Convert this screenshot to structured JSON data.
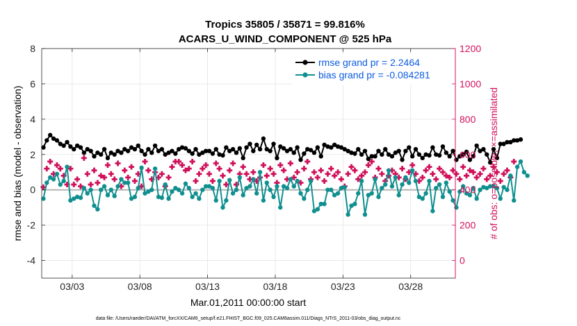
{
  "chart_data": {
    "type": "line",
    "title_line1": "Tropics 35805 / 35871 = 99.816%",
    "title_line2": "ACARS_U_WIND_COMPONENT @ 525 hPa",
    "xlabel": "Mar.01,2011 00:00:00 start",
    "ylabel_left": "rmse and bias (model - observation)",
    "ylabel_right": "# of obs: o=possible; ×=assimilated",
    "footnote": "data file: /Users/raeder/DAI/ATM_forcXX/CAM6_setup/f.e21.FHIST_BGC.f09_025.CAM6assim.011/Diags_NTrS_2011-03/obs_diag_output.nc",
    "x_range": [
      0.75,
      31.3
    ],
    "x_ticks": [
      {
        "value": 3,
        "label": "03/03"
      },
      {
        "value": 8,
        "label": "03/08"
      },
      {
        "value": 13,
        "label": "03/13"
      },
      {
        "value": 18,
        "label": "03/18"
      },
      {
        "value": 23,
        "label": "03/23"
      },
      {
        "value": 28,
        "label": "03/28"
      }
    ],
    "ylim_left": [
      -5,
      8
    ],
    "yticks_left": [
      "8",
      "6",
      "4",
      "2",
      "0",
      "-2",
      "-4"
    ],
    "ylim_right": [
      -100,
      1200
    ],
    "yticks_right": [
      "1200",
      "1000",
      "800",
      "600",
      "400",
      "200",
      "0"
    ],
    "zero_line": 0,
    "grid": true,
    "legend_position": "top-right",
    "colors": {
      "rmse": "#000000",
      "bias": "#108f8f",
      "obs": "#d0105a",
      "legend_text": "#0b5be0",
      "right_axis": "#d0105a",
      "zero_line": "#b5b5b5",
      "grid": "#e4e4e4"
    },
    "x_start": 0.875,
    "x_step": 0.25,
    "series": [
      {
        "name": "rmse",
        "legend_label": "rmse grand pr = 2.2464",
        "values": [
          2.4,
          2.8,
          3.1,
          2.9,
          2.8,
          2.6,
          2.5,
          2.7,
          2.45,
          2.3,
          2.5,
          2.4,
          2.1,
          2.3,
          2.2,
          1.9,
          2.1,
          2.0,
          2.3,
          1.8,
          2.1,
          2.0,
          2.2,
          2.1,
          2.3,
          2.2,
          2.4,
          2.3,
          2.5,
          2.2,
          2.0,
          2.3,
          2.1,
          2.5,
          2.2,
          2.3,
          2.0,
          2.1,
          2.2,
          2.05,
          2.3,
          2.4,
          2.35,
          2.2,
          2.05,
          2.3,
          2.0,
          2.1,
          2.2,
          2.2,
          2.05,
          2.3,
          2.0,
          1.95,
          2.4,
          2.2,
          2.3,
          2.1,
          2.35,
          1.8,
          2.4,
          2.6,
          2.2,
          2.55,
          2.3,
          2.9,
          2.3,
          2.2,
          2.6,
          1.8,
          2.45,
          2.35,
          2.2,
          2.3,
          2.1,
          2.4,
          1.7,
          2.05,
          2.3,
          2.25,
          2.1,
          2.4,
          1.9,
          2.55,
          2.45,
          2.4,
          2.55,
          2.45,
          2.4,
          2.3,
          2.2,
          2.1,
          2.05,
          2.3,
          2.0,
          2.2,
          1.75,
          1.9,
          1.9,
          2.2,
          2.0,
          2.3,
          2.0,
          1.9,
          2.1,
          2.2,
          1.7,
          2.2,
          2.4,
          1.9,
          2.3,
          2.0,
          1.8,
          2.0,
          1.95,
          2.4,
          2.0,
          1.95,
          2.45,
          2.1,
          1.9,
          2.2,
          1.7,
          1.9,
          2.0,
          2.15,
          1.7,
          1.9,
          2.5,
          2.2,
          2.3,
          2.0,
          1.55,
          2.3,
          1.8,
          2.6,
          2.6,
          2.7,
          2.7,
          2.8,
          2.8,
          2.85
        ]
      },
      {
        "name": "bias",
        "legend_label": "bias grand pr = -0.084281",
        "values": [
          -0.5,
          0.4,
          0.7,
          0.6,
          0.9,
          0.3,
          0.5,
          1.3,
          -0.6,
          -0.5,
          -0.4,
          -0.45,
          0.1,
          -0.2,
          0.0,
          -0.9,
          -1.1,
          0.0,
          0.2,
          -0.3,
          0.0,
          -0.35,
          0.2,
          0.6,
          0.4,
          0.4,
          -0.5,
          -0.4,
          0.1,
          1.25,
          -0.2,
          -0.1,
          0.0,
          1.2,
          -0.4,
          -0.45,
          0.3,
          -0.5,
          -0.1,
          0.1,
          0.0,
          -0.2,
          0.35,
          0.1,
          -0.4,
          -0.2,
          -0.5,
          0.0,
          0.2,
          0.2,
          0.1,
          -0.6,
          0.5,
          -1.0,
          -0.6,
          0.55,
          -0.2,
          0.0,
          0.7,
          -0.3,
          0.1,
          0.2,
          0.6,
          -0.2,
          1.0,
          -0.6,
          0.4,
          0.0,
          -0.4,
          0.2,
          -1.0,
          0.2,
          0.1,
          0.6,
          0.2,
          0.5,
          -0.2,
          -0.5,
          0.0,
          0.5,
          -1.2,
          -1.1,
          -0.8,
          -0.8,
          0.0,
          0.0,
          -0.3,
          -0.2,
          0.1,
          0.15,
          -1.4,
          -0.9,
          -0.8,
          -0.2,
          0.5,
          -1.4,
          -0.3,
          -0.2,
          0.6,
          -0.4,
          0.1,
          0.3,
          1.1,
          0.2,
          0.7,
          -0.3,
          0.3,
          0.7,
          0.4,
          1.1,
          0.5,
          -0.4,
          -0.5,
          -0.2,
          0.5,
          -1.2,
          0.1,
          0.3,
          -0.4,
          0.4,
          -0.1,
          -0.6,
          -1.0,
          -0.1,
          0.2,
          -0.2,
          -0.3,
          0.1,
          -0.5,
          0.0,
          0.15,
          0.1,
          0.2,
          0.2,
          0.1,
          -0.5,
          0.15,
          0.0,
          0.8,
          -0.6,
          1.3,
          1.6,
          1.0,
          0.8
        ]
      },
      {
        "name": "obs_possible",
        "legend_label": "possible",
        "values": [
          415,
          520,
          560,
          490,
          540,
          520,
          480,
          430,
          520,
          430,
          460,
          420,
          580,
          490,
          430,
          510,
          440,
          480,
          470,
          540,
          490,
          460,
          550,
          420,
          510,
          470,
          530,
          450,
          490,
          420,
          560,
          510,
          460,
          500,
          470,
          490,
          420,
          470,
          530,
          560,
          560,
          540,
          510,
          520,
          560,
          450,
          490,
          520,
          540,
          490,
          450,
          550,
          520,
          480,
          430,
          510,
          550,
          430,
          490,
          530,
          490,
          460,
          500,
          450,
          470,
          540,
          480,
          520,
          490,
          440,
          540,
          510,
          460,
          550,
          470,
          500,
          440,
          520,
          560,
          460,
          500,
          470,
          510,
          450,
          490,
          520,
          480,
          500,
          460,
          420,
          490,
          530,
          510,
          460,
          480,
          500,
          540,
          560,
          470,
          520,
          490,
          450,
          480,
          510,
          490,
          470,
          520,
          460,
          500,
          540,
          490,
          450,
          470,
          510,
          530,
          490,
          460,
          520,
          500,
          480,
          470,
          510,
          490,
          460,
          530,
          480,
          510,
          500,
          470,
          490,
          520,
          460,
          480,
          530,
          500,
          450,
          490,
          510,
          470,
          560
        ]
      },
      {
        "name": "obs_assimilated",
        "legend_label": "assimilated",
        "values": [
          415,
          520,
          560,
          490,
          540,
          520,
          480,
          430,
          520,
          430,
          460,
          420,
          580,
          490,
          430,
          510,
          440,
          480,
          470,
          540,
          490,
          460,
          550,
          420,
          510,
          470,
          530,
          450,
          490,
          420,
          560,
          510,
          460,
          500,
          470,
          490,
          420,
          470,
          530,
          560,
          560,
          540,
          510,
          520,
          560,
          450,
          490,
          520,
          540,
          490,
          450,
          550,
          520,
          480,
          430,
          510,
          550,
          430,
          490,
          530,
          490,
          460,
          500,
          450,
          470,
          540,
          480,
          520,
          490,
          440,
          540,
          510,
          460,
          550,
          470,
          500,
          440,
          520,
          560,
          460,
          500,
          470,
          510,
          450,
          490,
          520,
          480,
          500,
          460,
          420,
          490,
          530,
          510,
          460,
          480,
          500,
          540,
          560,
          470,
          520,
          490,
          450,
          480,
          510,
          490,
          470,
          520,
          460,
          500,
          540,
          490,
          450,
          470,
          510,
          530,
          490,
          460,
          520,
          500,
          480,
          470,
          510,
          490,
          460,
          530,
          480,
          510,
          500,
          470,
          490,
          520,
          460,
          480,
          530,
          500,
          450,
          490,
          510,
          470,
          560
        ]
      }
    ]
  }
}
